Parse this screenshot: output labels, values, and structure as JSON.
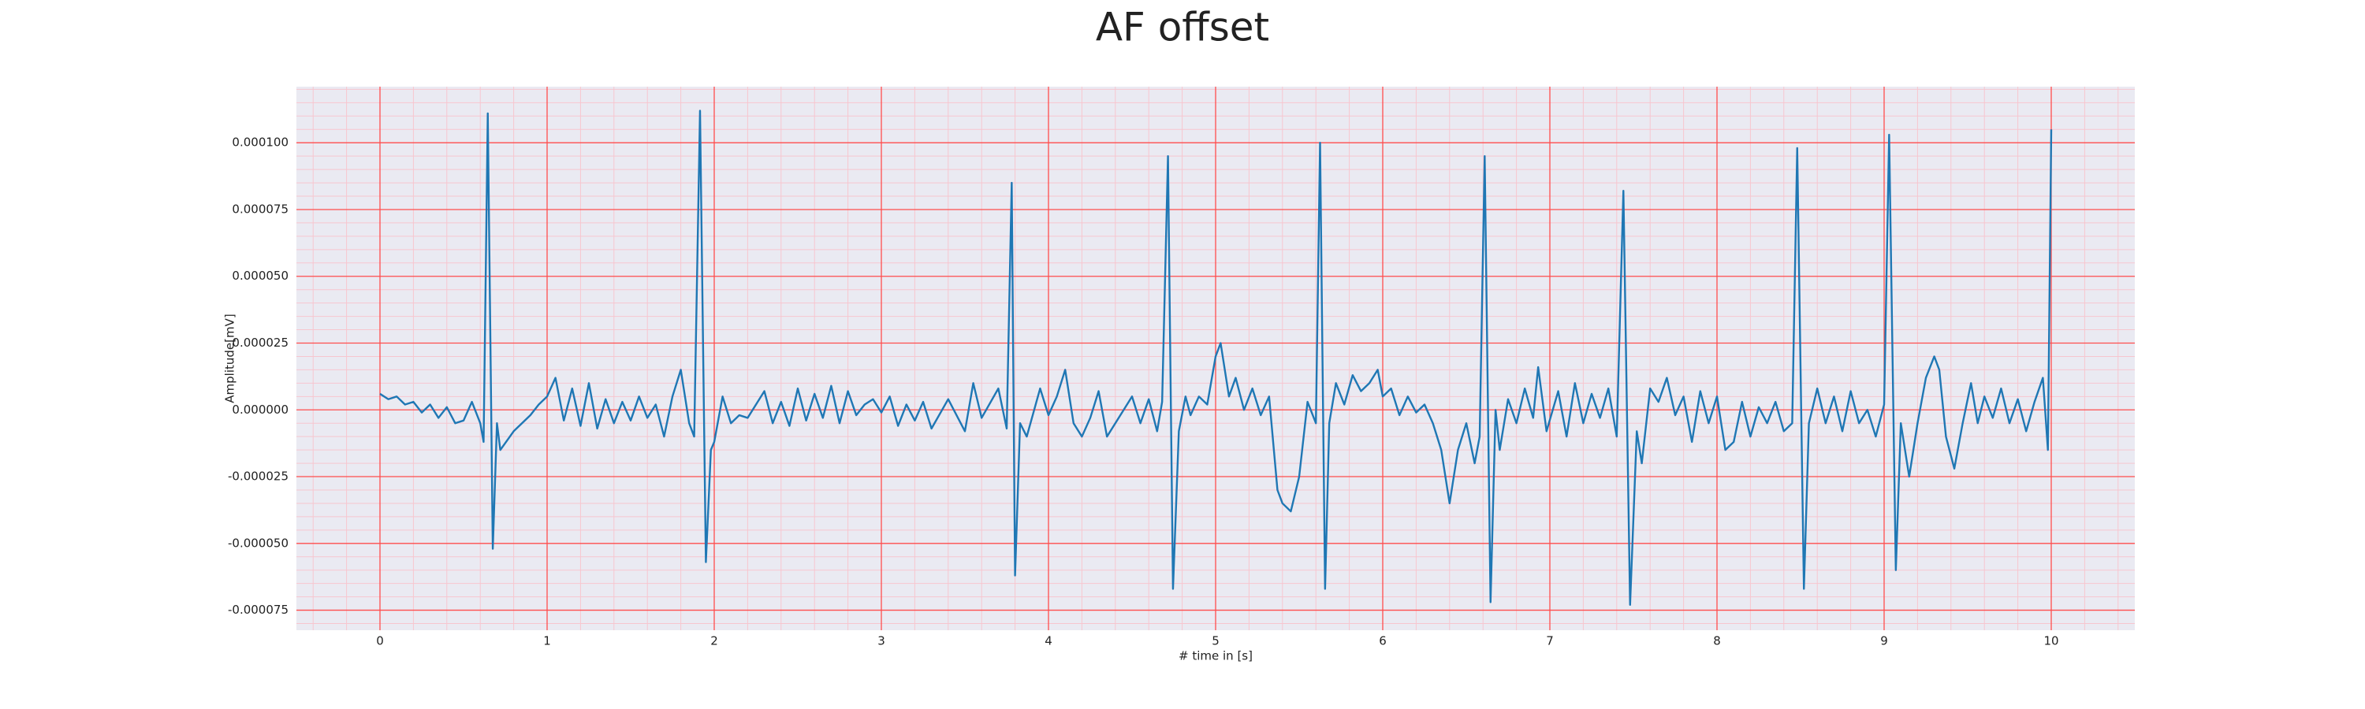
{
  "chart_data": {
    "type": "line",
    "title": "AF offset",
    "x_label": "# time in [s]",
    "y_label": "Amplitude[mV]",
    "xlim": [
      -0.5,
      10.5
    ],
    "ylim": [
      -8.25e-05,
      0.000121
    ],
    "xticks": [
      0,
      1,
      2,
      3,
      4,
      5,
      6,
      7,
      8,
      9,
      10
    ],
    "yticks": [
      {
        "value": -7.5e-05,
        "label": "-0.000075"
      },
      {
        "value": -5e-05,
        "label": "-0.000050"
      },
      {
        "value": -2.5e-05,
        "label": "-0.000025"
      },
      {
        "value": 0,
        "label": "0.000000"
      },
      {
        "value": 2.5e-05,
        "label": "0.000025"
      },
      {
        "value": 5e-05,
        "label": "0.000050"
      },
      {
        "value": 7.5e-05,
        "label": "0.000075"
      },
      {
        "value": 0.0001,
        "label": "0.000100"
      }
    ],
    "xminorticks": [
      -0.4,
      -0.2,
      0.2,
      0.4,
      0.6,
      0.8,
      1.2,
      1.4,
      1.6,
      1.8,
      2.2,
      2.4,
      2.6,
      2.8,
      3.2,
      3.4,
      3.6,
      3.8,
      4.2,
      4.4,
      4.6,
      4.8,
      5.2,
      5.4,
      5.6,
      5.8,
      6.2,
      6.4,
      6.6,
      6.8,
      7.2,
      7.4,
      7.6,
      7.8,
      8.2,
      8.4,
      8.6,
      8.8,
      9.2,
      9.4,
      9.6,
      9.8,
      10.2,
      10.4
    ],
    "yminorticks": [
      -8e-05,
      -7e-05,
      -6.5e-05,
      -6e-05,
      -5.5e-05,
      -4.5e-05,
      -4e-05,
      -3.5e-05,
      -3e-05,
      -2e-05,
      -1.5e-05,
      -1e-05,
      -5e-06,
      5e-06,
      1e-05,
      1.5e-05,
      2e-05,
      3e-05,
      3.5e-05,
      4e-05,
      4.5e-05,
      5.5e-05,
      6e-05,
      6.5e-05,
      7e-05,
      8e-05,
      8.5e-05,
      9e-05,
      9.5e-05,
      0.000105,
      0.00011,
      0.000115,
      0.00012
    ],
    "grid": true,
    "minor_grid": true,
    "grid_color": "#ff4d4d",
    "minor_grid_color": "#f7c6cf",
    "background": "#eaeaf2",
    "series": [
      {
        "name": "AF offset",
        "color": "#1f77b4",
        "x": [
          0,
          0.05,
          0.1,
          0.15,
          0.2,
          0.25,
          0.3,
          0.35,
          0.4,
          0.45,
          0.5,
          0.55,
          0.6,
          0.62,
          0.645,
          0.675,
          0.7,
          0.72,
          0.8,
          0.9,
          0.95,
          1.0,
          1.05,
          1.1,
          1.15,
          1.2,
          1.25,
          1.3,
          1.35,
          1.4,
          1.45,
          1.5,
          1.55,
          1.6,
          1.65,
          1.7,
          1.75,
          1.8,
          1.85,
          1.88,
          1.915,
          1.95,
          1.98,
          2.0,
          2.05,
          2.1,
          2.15,
          2.2,
          2.3,
          2.35,
          2.4,
          2.45,
          2.5,
          2.55,
          2.6,
          2.65,
          2.7,
          2.75,
          2.8,
          2.85,
          2.9,
          2.95,
          3.0,
          3.05,
          3.1,
          3.15,
          3.2,
          3.25,
          3.3,
          3.4,
          3.5,
          3.55,
          3.6,
          3.7,
          3.75,
          3.78,
          3.8,
          3.83,
          3.87,
          3.95,
          4.0,
          4.05,
          4.1,
          4.15,
          4.2,
          4.25,
          4.3,
          4.35,
          4.4,
          4.5,
          4.55,
          4.6,
          4.65,
          4.68,
          4.715,
          4.745,
          4.78,
          4.82,
          4.85,
          4.9,
          4.95,
          5.0,
          5.03,
          5.08,
          5.12,
          5.17,
          5.22,
          5.27,
          5.32,
          5.37,
          5.4,
          5.45,
          5.5,
          5.55,
          5.6,
          5.625,
          5.655,
          5.68,
          5.72,
          5.77,
          5.82,
          5.87,
          5.92,
          5.97,
          6.0,
          6.05,
          6.1,
          6.15,
          6.2,
          6.25,
          6.3,
          6.35,
          6.4,
          6.45,
          6.5,
          6.55,
          6.58,
          6.61,
          6.645,
          6.675,
          6.7,
          6.75,
          6.8,
          6.85,
          6.9,
          6.93,
          6.98,
          7.05,
          7.1,
          7.15,
          7.2,
          7.25,
          7.3,
          7.35,
          7.4,
          7.44,
          7.48,
          7.52,
          7.55,
          7.6,
          7.65,
          7.7,
          7.75,
          7.8,
          7.85,
          7.9,
          7.95,
          8.0,
          8.05,
          8.1,
          8.15,
          8.2,
          8.25,
          8.3,
          8.35,
          8.4,
          8.45,
          8.48,
          8.52,
          8.55,
          8.6,
          8.65,
          8.7,
          8.75,
          8.8,
          8.85,
          8.9,
          8.95,
          9.0,
          9.03,
          9.07,
          9.1,
          9.15,
          9.2,
          9.25,
          9.3,
          9.33,
          9.37,
          9.42,
          9.47,
          9.52,
          9.56,
          9.6,
          9.65,
          9.7,
          9.75,
          9.8,
          9.85,
          9.9,
          9.95,
          9.98,
          10.0
        ],
        "values": [
          6e-06,
          4e-06,
          5e-06,
          2e-06,
          3e-06,
          -1e-06,
          2e-06,
          -3e-06,
          1e-06,
          -5e-06,
          -4e-06,
          3e-06,
          -5e-06,
          -1.2e-05,
          0.000111,
          -5.2e-05,
          -5e-06,
          -1.5e-05,
          -8e-06,
          -2e-06,
          2e-06,
          5e-06,
          1.2e-05,
          -4e-06,
          8e-06,
          -6e-06,
          1e-05,
          -7e-06,
          4e-06,
          -5e-06,
          3e-06,
          -4e-06,
          5e-06,
          -3e-06,
          2e-06,
          -1e-05,
          5e-06,
          1.5e-05,
          -5e-06,
          -1e-05,
          0.000112,
          -5.7e-05,
          -1.5e-05,
          -1.2e-05,
          5e-06,
          -5e-06,
          -2e-06,
          -3e-06,
          7e-06,
          -5e-06,
          3e-06,
          -6e-06,
          8e-06,
          -4e-06,
          6e-06,
          -3e-06,
          9e-06,
          -5e-06,
          7e-06,
          -2e-06,
          2e-06,
          4e-06,
          -1e-06,
          5e-06,
          -6e-06,
          2e-06,
          -4e-06,
          3e-06,
          -7e-06,
          4e-06,
          -8e-06,
          1e-05,
          -3e-06,
          8e-06,
          -7e-06,
          8.5e-05,
          -6.2e-05,
          -5e-06,
          -1e-05,
          8e-06,
          -2e-06,
          5e-06,
          1.5e-05,
          -5e-06,
          -1e-05,
          -3e-06,
          7e-06,
          -1e-05,
          -5e-06,
          5e-06,
          -5e-06,
          4e-06,
          -8e-06,
          3e-06,
          9.5e-05,
          -6.7e-05,
          -8e-06,
          5e-06,
          -2e-06,
          5e-06,
          2e-06,
          2e-05,
          2.5e-05,
          5e-06,
          1.2e-05,
          0,
          8e-06,
          -2e-06,
          5e-06,
          -3e-05,
          -3.5e-05,
          -3.8e-05,
          -2.5e-05,
          3e-06,
          -5e-06,
          0.0001,
          -6.7e-05,
          -5e-06,
          1e-05,
          2e-06,
          1.3e-05,
          7e-06,
          1e-05,
          1.5e-05,
          5e-06,
          8e-06,
          -2e-06,
          5e-06,
          -1e-06,
          2e-06,
          -5e-06,
          -1.5e-05,
          -3.5e-05,
          -1.5e-05,
          -5e-06,
          -2e-05,
          -1e-05,
          9.5e-05,
          -7.2e-05,
          0,
          -1.5e-05,
          4e-06,
          -5e-06,
          8e-06,
          -3e-06,
          1.6e-05,
          -8e-06,
          7e-06,
          -1e-05,
          1e-05,
          -5e-06,
          6e-06,
          -3e-06,
          8e-06,
          -1e-05,
          8.2e-05,
          -7.3e-05,
          -8e-06,
          -2e-05,
          8e-06,
          3e-06,
          1.2e-05,
          -2e-06,
          5e-06,
          -1.2e-05,
          7e-06,
          -5e-06,
          5e-06,
          -1.5e-05,
          -1.2e-05,
          3e-06,
          -1e-05,
          1e-06,
          -5e-06,
          3e-06,
          -8e-06,
          -5e-06,
          9.8e-05,
          -6.7e-05,
          -5e-06,
          8e-06,
          -5e-06,
          5e-06,
          -8e-06,
          7e-06,
          -5e-06,
          0,
          -1e-05,
          2e-06,
          0.000103,
          -6e-05,
          -5e-06,
          -2.5e-05,
          -5e-06,
          1.2e-05,
          2e-05,
          1.5e-05,
          -1e-05,
          -2.2e-05,
          -5e-06,
          1e-05,
          -5e-06,
          5e-06,
          -3e-06,
          8e-06,
          -5e-06,
          4e-06,
          -8e-06,
          3e-06,
          1.2e-05,
          -1.5e-05,
          0.000105
        ]
      }
    ]
  }
}
